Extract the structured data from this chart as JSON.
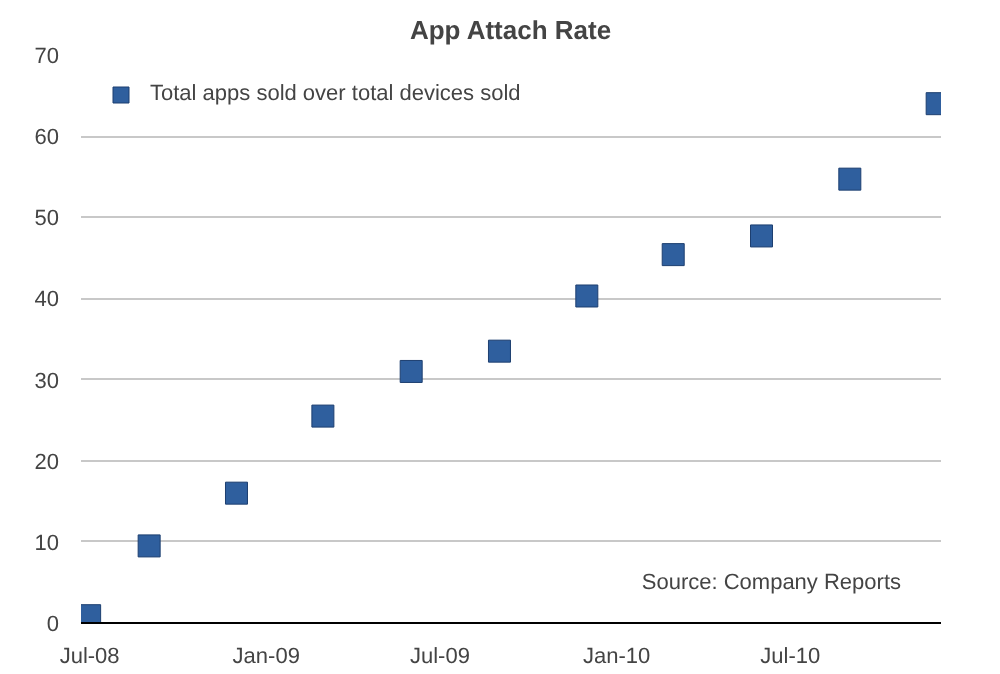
{
  "chart_data": {
    "type": "scatter",
    "title": "App Attach Rate",
    "x": [
      "2008-07",
      "2008-09",
      "2008-12",
      "2009-03",
      "2009-06",
      "2009-09",
      "2009-12",
      "2010-03",
      "2010-06",
      "2010-09",
      "2010-12"
    ],
    "series": [
      {
        "name": "Total apps sold over total devices sold",
        "color": "#2f5f9e",
        "values": [
          0.9,
          9.5,
          16,
          25.5,
          31,
          33.5,
          40.3,
          45.4,
          47.7,
          54.7,
          64
        ]
      }
    ],
    "xlim": [
      "2008-06-22",
      "2010-12-05"
    ],
    "xticks": [
      {
        "value": "2008-07",
        "label": "Jul-08"
      },
      {
        "value": "2009-01",
        "label": "Jan-09"
      },
      {
        "value": "2009-07",
        "label": "Jul-09"
      },
      {
        "value": "2010-01",
        "label": "Jan-10"
      },
      {
        "value": "2010-07",
        "label": "Jul-10"
      }
    ],
    "ylim": [
      0,
      70
    ],
    "yticks": [
      0,
      10,
      20,
      30,
      40,
      50,
      60,
      70
    ],
    "grid": "y",
    "legend": "top left",
    "marker": "square",
    "annotations": [
      "Source: Company Reports"
    ]
  }
}
